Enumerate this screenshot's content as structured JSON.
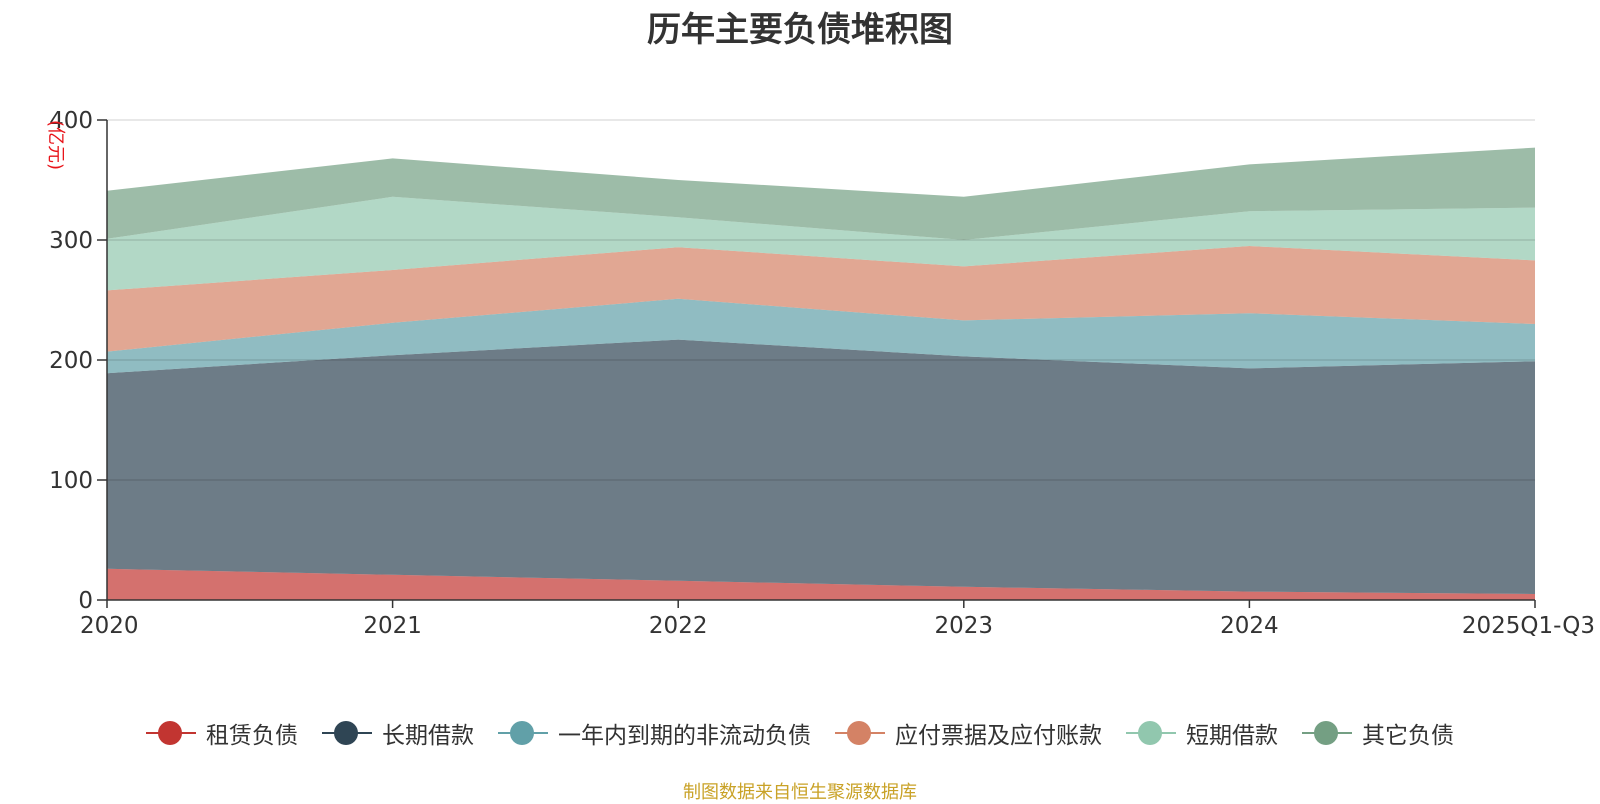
{
  "chart_data": {
    "type": "area",
    "stacked": true,
    "title": "历年主要负债堆积图",
    "ylabel": "(亿元)",
    "xlabel": "",
    "categories": [
      "2020",
      "2021",
      "2022",
      "2023",
      "2024",
      "2025Q1-Q3"
    ],
    "ylim": [
      0,
      400
    ],
    "yticks": [
      0,
      100,
      200,
      300,
      400
    ],
    "grid": true,
    "legend_position": "bottom",
    "series": [
      {
        "name": "租赁负债",
        "color": "#c23531",
        "values": [
          26,
          21,
          16,
          11,
          7,
          5
        ]
      },
      {
        "name": "长期借款",
        "color": "#2f4554",
        "values": [
          163,
          183,
          201,
          192,
          186,
          194
        ]
      },
      {
        "name": "一年内到期的非流动负债",
        "color": "#61a0a8",
        "values": [
          18,
          27,
          34,
          30,
          46,
          31
        ]
      },
      {
        "name": "应付票据及应付账款",
        "color": "#d48265",
        "values": [
          51,
          44,
          43,
          45,
          56,
          53
        ]
      },
      {
        "name": "短期借款",
        "color": "#91c7ae",
        "values": [
          43,
          61,
          25,
          22,
          29,
          44
        ]
      },
      {
        "name": "其它负债",
        "color": "#749f83",
        "values": [
          40,
          32,
          31,
          36,
          39,
          50
        ]
      }
    ]
  },
  "footer": {
    "source": "制图数据来自恒生聚源数据库"
  }
}
